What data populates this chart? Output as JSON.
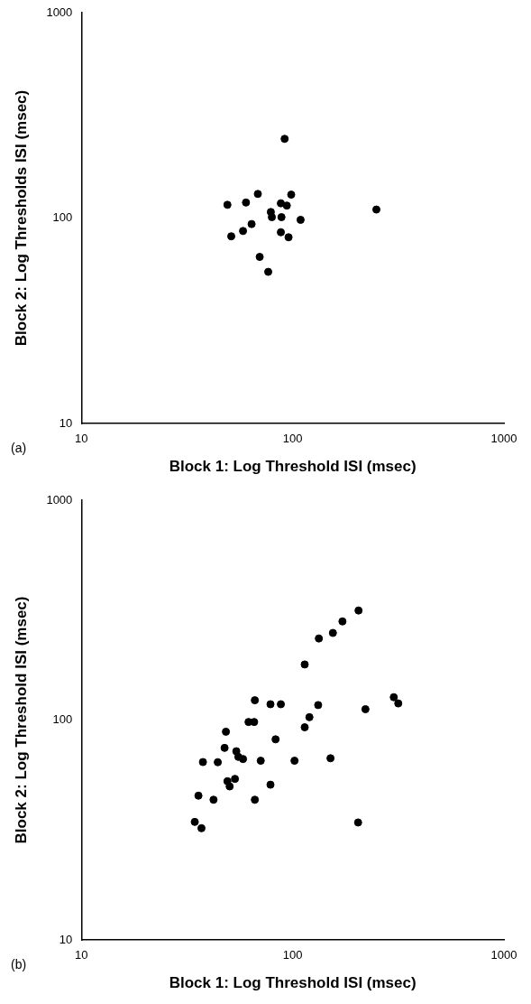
{
  "chart_data": [
    {
      "type": "scatter",
      "xlabel": "Block 1: Log Threshold ISI (msec)",
      "ylabel": "Block 2: Log Thresholds ISI (msec)",
      "annotations": [
        "(a)"
      ],
      "log": "xy",
      "grid": false,
      "legend": false,
      "marker": "circle",
      "xlim": [
        10,
        1000
      ],
      "ylim": [
        10,
        1000
      ],
      "xticks": [
        10,
        100,
        1000
      ],
      "yticks": [
        10,
        100,
        1000
      ],
      "color": "#000000",
      "x": [
        91.6,
        68.4,
        98.4,
        49.1,
        60.1,
        87.9,
        93.8,
        249,
        78.8,
        79.7,
        88.5,
        109,
        63.9,
        58.2,
        51.2,
        87.9,
        95.6,
        69.8,
        76.6
      ],
      "values": [
        243,
        131,
        130,
        116,
        119,
        118,
        115,
        110,
        107,
        101,
        101,
        98,
        93.5,
        86.5,
        81.5,
        85.3,
        80.6,
        64.7,
        54.7
      ]
    },
    {
      "type": "scatter",
      "xlabel": "Block 1: Log Threshold ISI (msec)",
      "ylabel": "Block 2: Log Threshold ISI (msec)",
      "annotations": [
        "(b)"
      ],
      "log": "xy",
      "grid": false,
      "legend": false,
      "marker": "circle",
      "xlim": [
        10,
        1000
      ],
      "ylim": [
        10,
        1000
      ],
      "xticks": [
        10,
        100,
        1000
      ],
      "yticks": [
        10,
        100,
        1000
      ],
      "color": "#000000",
      "x": [
        205,
        172,
        155,
        133,
        114,
        66.2,
        78.5,
        87.9,
        132,
        301,
        316,
        221,
        61.8,
        65.7,
        120,
        114,
        48.3,
        83,
        47.6,
        54.1,
        55.3,
        58.2,
        37.6,
        44.2,
        70.6,
        102,
        151,
        49.1,
        53.3,
        50.3,
        78.5,
        35.8,
        42.2,
        66.2,
        204,
        34.4,
        37
      ],
      "values": [
        315,
        281,
        249,
        235,
        179,
        123,
        118,
        118,
        117,
        127,
        119,
        112,
        98,
        98,
        103,
        92.7,
        88.5,
        81.7,
        74.7,
        72.1,
        68,
        66.5,
        64.4,
        64.3,
        65.3,
        65.3,
        67,
        52.7,
        54,
        49.9,
        50.8,
        45.3,
        43.4,
        43.4,
        34.2,
        34.4,
        32.2
      ]
    }
  ]
}
